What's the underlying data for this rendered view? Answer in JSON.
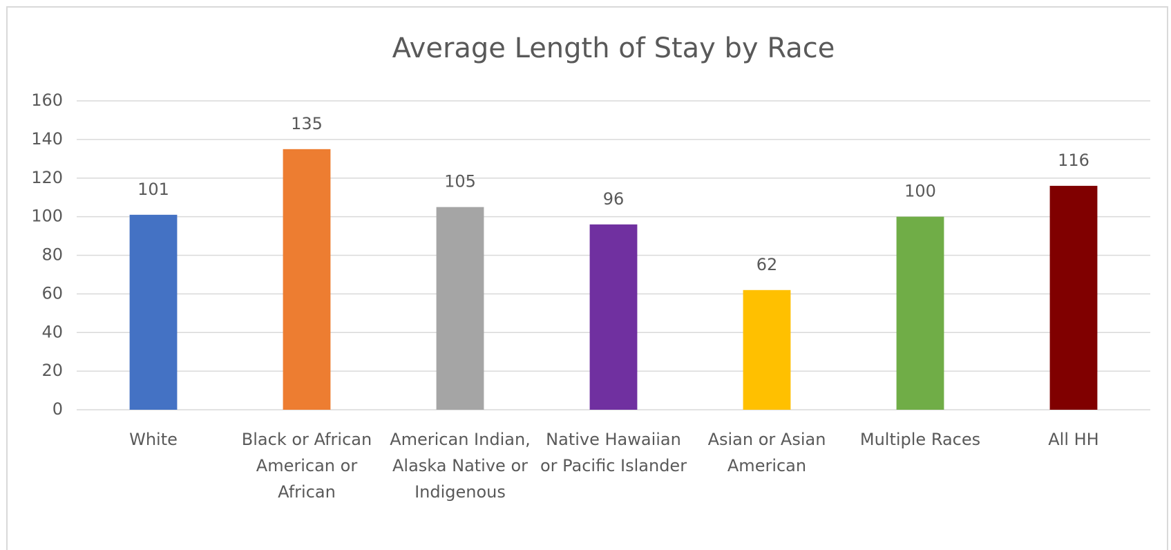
{
  "chart_data": {
    "type": "bar",
    "title": "Average Length of Stay by Race",
    "categories": [
      "White",
      "Black or African American or African",
      "American Indian, Alaska Native or Indigenous",
      "Native Hawaiian or Pacific Islander",
      "Asian or Asian American",
      "Multiple Races",
      "All HH"
    ],
    "values": [
      101,
      135,
      105,
      96,
      62,
      100,
      116
    ],
    "colors": [
      "#4472c4",
      "#ed7d31",
      "#a5a5a5",
      "#7030a0",
      "#ffc000",
      "#70ad47",
      "#800000"
    ],
    "ylim": [
      0,
      160
    ],
    "yticks": [
      0,
      20,
      40,
      60,
      80,
      100,
      120,
      140,
      160
    ],
    "grid": true
  }
}
